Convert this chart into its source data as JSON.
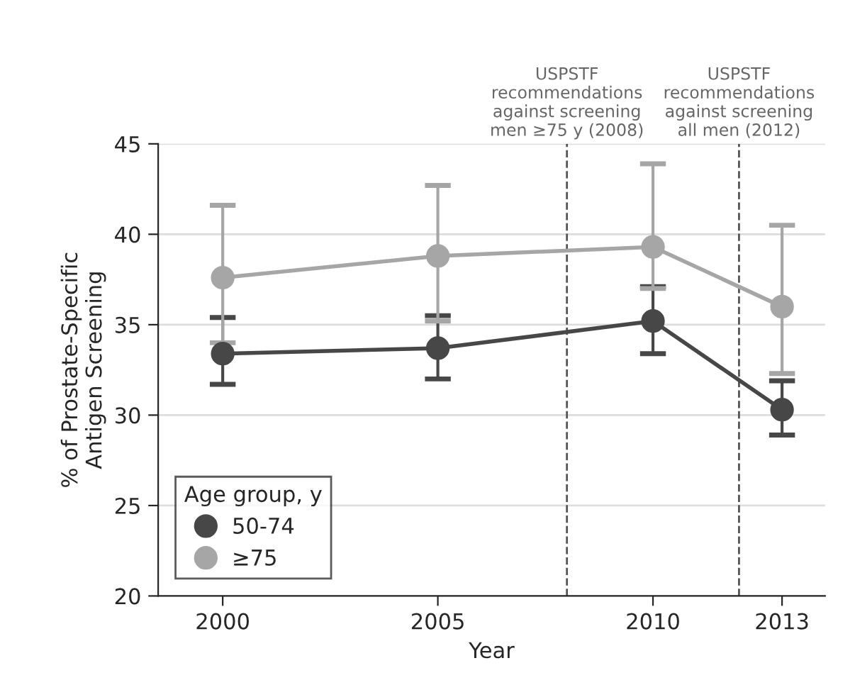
{
  "chart_data": {
    "type": "line",
    "xlabel": "Year",
    "ylabel": "% of Prostate-Specific\nAntigen Screening",
    "x": [
      2000,
      2005,
      2010,
      2013
    ],
    "xlim": [
      1998.5,
      2014
    ],
    "xticks": [
      2000,
      2005,
      2010,
      2013
    ],
    "series": [
      {
        "name": "50-74",
        "color": "#474747",
        "values": [
          33.4,
          33.7,
          35.2,
          30.3
        ],
        "errors": [
          [
            31.7,
            35.4
          ],
          [
            32.0,
            35.5
          ],
          [
            33.4,
            37.1
          ],
          [
            28.9,
            31.9
          ]
        ]
      },
      {
        "name": "≥75",
        "color": "#a6a6a6",
        "values": [
          37.6,
          38.8,
          39.3,
          36.0
        ],
        "errors": [
          [
            34.0,
            41.6
          ],
          [
            35.2,
            42.7
          ],
          [
            37.0,
            43.9
          ],
          [
            32.3,
            40.5
          ]
        ]
      }
    ],
    "ylim": [
      20,
      45
    ],
    "yticks": [
      20,
      25,
      30,
      35,
      40,
      45
    ],
    "ref_lines": [
      {
        "axis": "x",
        "value": 2008,
        "label": "USPSTF\nrecommendations\nagainst screening\nmen ≥75 y (2008)",
        "color": "#555555",
        "line_style": "dashed"
      },
      {
        "axis": "x",
        "value": 2012,
        "label": "USPSTF\nrecommendations\nagainst screening\nall men (2012)",
        "color": "#555555",
        "line_style": "dashed"
      }
    ],
    "legend_title": "Age group, y",
    "legend": "bottom left",
    "grid": "y",
    "marker": "circle",
    "line_style": "solid"
  }
}
